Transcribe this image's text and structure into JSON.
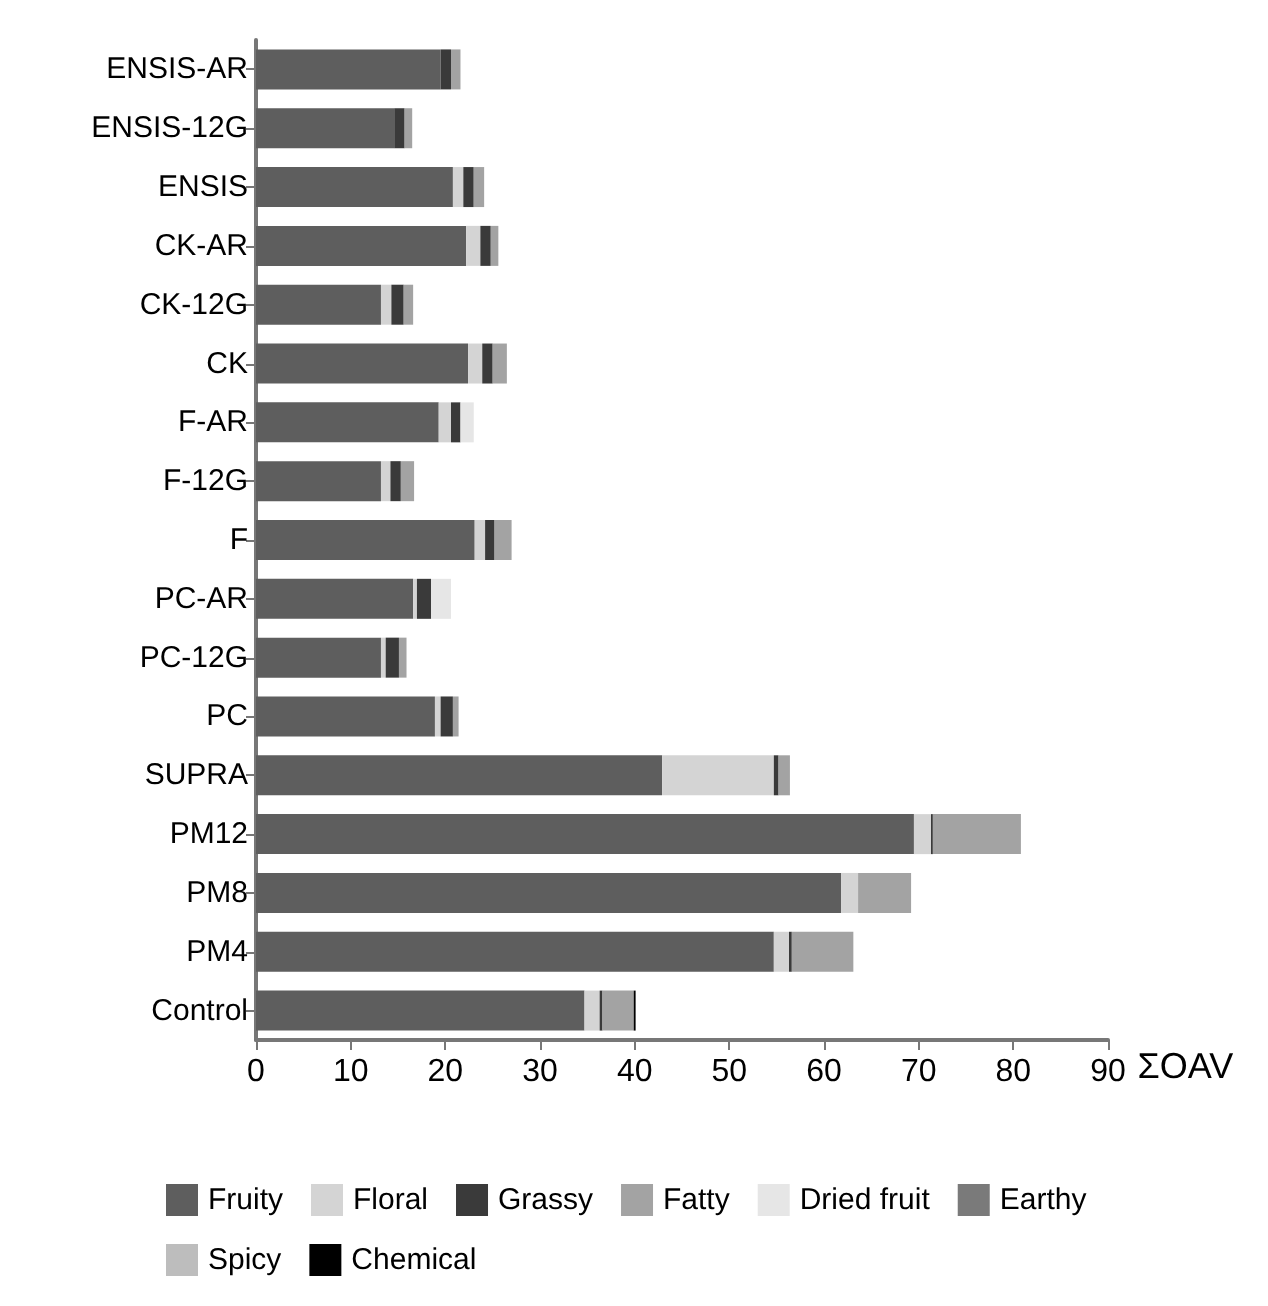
{
  "chart_data": {
    "type": "bar",
    "orientation": "horizontal",
    "stacked": true,
    "xlabel": "ΣOAV",
    "categories": [
      "ENSIS-AR",
      "ENSIS-12G",
      "ENSIS",
      "CK-AR",
      "CK-12G",
      "CK",
      "F-AR",
      "F-12G",
      "F",
      "PC-AR",
      "PC-12G",
      "PC",
      "SUPRA",
      "PM12",
      "PM8",
      "PM4",
      "Control"
    ],
    "xlim": [
      0,
      90
    ],
    "xticks": [
      0,
      10,
      20,
      30,
      40,
      50,
      60,
      70,
      80,
      90
    ],
    "grid": false,
    "legend": "bottom",
    "series": [
      {
        "name": "Fruity",
        "color": "#5e5e5e",
        "values": [
          19.5,
          14.6,
          20.8,
          22.2,
          13.2,
          22.4,
          19.3,
          13.2,
          23.1,
          16.6,
          13.2,
          18.9,
          42.9,
          69.5,
          61.8,
          54.7,
          34.7
        ]
      },
      {
        "name": "Floral",
        "color": "#d4d4d4",
        "values": [
          null,
          null,
          1.1,
          1.5,
          1.1,
          1.5,
          1.3,
          1.0,
          1.1,
          0.4,
          0.5,
          0.6,
          11.8,
          1.8,
          1.8,
          1.6,
          1.6
        ]
      },
      {
        "name": "Grassy",
        "color": "#3a3a3a",
        "values": [
          1.1,
          1.1,
          1.1,
          1.1,
          1.3,
          1.1,
          1.0,
          1.1,
          1.0,
          1.5,
          1.4,
          1.3,
          0.5,
          0.2,
          null,
          0.3,
          0.3
        ]
      },
      {
        "name": "Fatty",
        "color": "#a3a3a3",
        "values": [
          1.0,
          0.8,
          1.1,
          0.8,
          1.0,
          1.5,
          null,
          1.4,
          1.8,
          null,
          0.8,
          0.6,
          1.2,
          9.3,
          5.6,
          6.5,
          3.3
        ]
      },
      {
        "name": "Dried fruit",
        "color": "#e6e6e6",
        "values": [
          null,
          null,
          null,
          null,
          null,
          null,
          1.4,
          null,
          null,
          2.1,
          null,
          null,
          null,
          null,
          null,
          null,
          null
        ]
      },
      {
        "name": "Earthy",
        "color": "#7a7a7a",
        "values": [
          null,
          null,
          null,
          null,
          null,
          null,
          null,
          null,
          null,
          null,
          null,
          null,
          null,
          null,
          null,
          null,
          null
        ]
      },
      {
        "name": "Spicy",
        "color": "#bdbdbd",
        "values": [
          null,
          null,
          null,
          null,
          null,
          null,
          null,
          null,
          null,
          null,
          null,
          null,
          null,
          null,
          null,
          null,
          null
        ]
      },
      {
        "name": "Chemical",
        "color": "#000000",
        "values": [
          null,
          null,
          null,
          null,
          null,
          null,
          null,
          null,
          null,
          null,
          null,
          null,
          null,
          null,
          null,
          null,
          0.2
        ]
      }
    ]
  }
}
